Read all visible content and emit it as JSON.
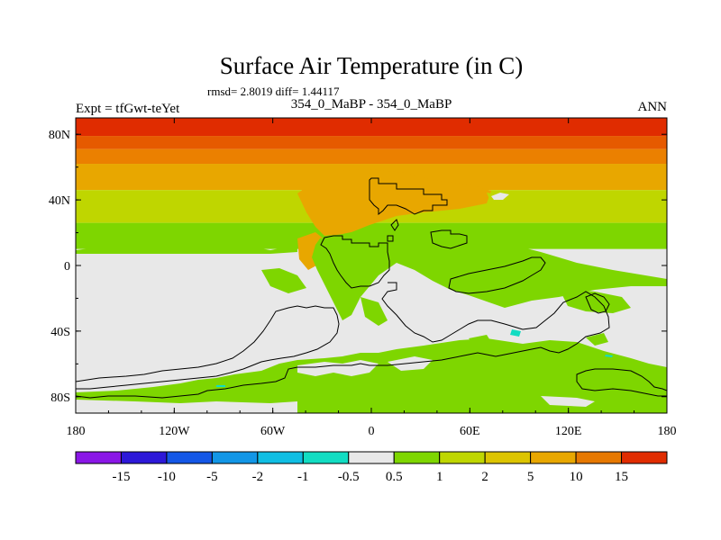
{
  "title": "Surface Air Temperature (in C)",
  "stats_line": "rmsd= 2.8019 diff= 1.44117",
  "subtitle": "354_0_MaBP - 354_0_MaBP",
  "left_label": "Expt = tfGwt-teYet",
  "right_label": "ANN",
  "chart_data": {
    "type": "heatmap",
    "projection": "cylindrical-equidistant",
    "lon_range": [
      -180,
      180
    ],
    "lat_range": [
      -90,
      90
    ],
    "x_ticks": [
      {
        "value": -180,
        "label": "180"
      },
      {
        "value": -120,
        "label": "120W"
      },
      {
        "value": -60,
        "label": "60W"
      },
      {
        "value": 0,
        "label": "0"
      },
      {
        "value": 60,
        "label": "60E"
      },
      {
        "value": 120,
        "label": "120E"
      },
      {
        "value": 180,
        "label": "180"
      }
    ],
    "y_ticks": [
      {
        "value": 80,
        "label": "80N"
      },
      {
        "value": 40,
        "label": "40N"
      },
      {
        "value": 0,
        "label": "0"
      },
      {
        "value": -40,
        "label": "40S"
      },
      {
        "value": -80,
        "label": "80S"
      }
    ],
    "zonal_levels": [
      {
        "lat_max": 90,
        "lat_min": 79,
        "color": "#e02c00"
      },
      {
        "lat_max": 79,
        "lat_min": 71,
        "color": "#e65a00"
      },
      {
        "lat_max": 71,
        "lat_min": 62,
        "color": "#eb8000"
      },
      {
        "lat_max": 62,
        "lat_min": 46,
        "color": "#e8a700"
      },
      {
        "lat_max": 46,
        "lat_min": 26,
        "color": "#bfd600"
      },
      {
        "lat_max": 26,
        "lat_min": 10,
        "color": "#7ed600"
      },
      {
        "lat_max": 10,
        "lat_min": -90,
        "color": "#e8e8e8"
      }
    ],
    "colorbar": {
      "colors": [
        "#8a16e6",
        "#2d18d8",
        "#1457e6",
        "#1296e6",
        "#10bee3",
        "#12dcc2",
        "#e8e8e8",
        "#7ed600",
        "#bfd600",
        "#dcc400",
        "#e8a700",
        "#e67800",
        "#e02c00"
      ],
      "labels": [
        "-15",
        "-10",
        "-5",
        "-2",
        "-1",
        "-0.5",
        "0.5",
        "1",
        "2",
        "5",
        "10",
        "15"
      ]
    }
  }
}
